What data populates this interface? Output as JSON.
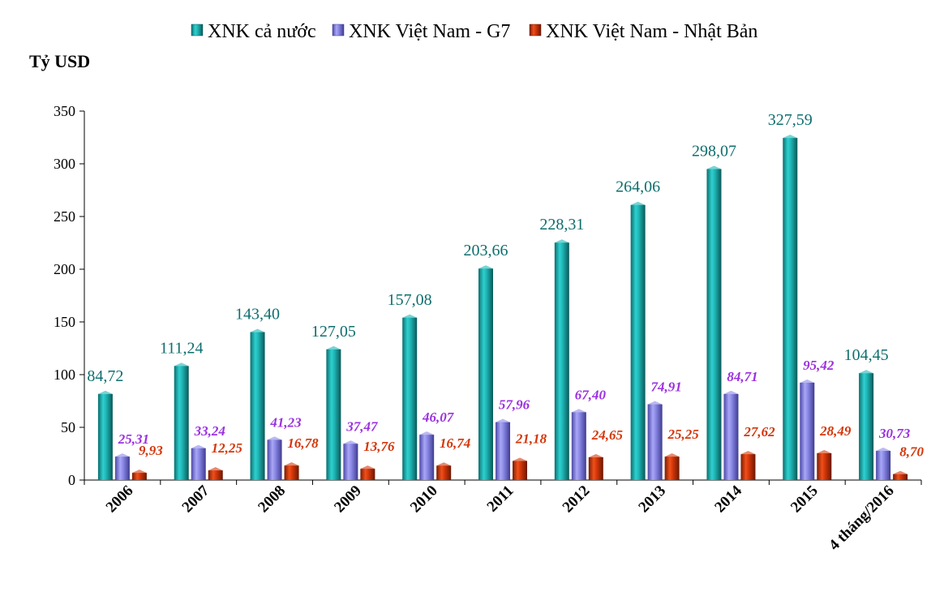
{
  "chart_data": {
    "type": "bar",
    "ylabel": "Tỷ USD",
    "xlabel": "",
    "title": "",
    "ylim": [
      0,
      350
    ],
    "yticks": [
      0,
      50,
      100,
      150,
      200,
      250,
      300,
      350
    ],
    "legend_position": "top",
    "grid": false,
    "categories": [
      "2006",
      "2007",
      "2008",
      "2009",
      "2010",
      "2011",
      "2012",
      "2013",
      "2014",
      "2015",
      "4 tháng/2016"
    ],
    "series": [
      {
        "name": "XNK cả nước",
        "color": "#1FB5B5",
        "values": [
          84.72,
          111.24,
          143.4,
          127.05,
          157.08,
          203.66,
          228.31,
          264.06,
          298.07,
          327.59,
          104.45
        ],
        "labels": [
          "84,72",
          "111,24",
          "143,40",
          "127,05",
          "157,08",
          "203,66",
          "228,31",
          "264,06",
          "298,07",
          "327,59",
          "104,45"
        ],
        "label_color": "#0E6E6E"
      },
      {
        "name": "XNK Việt Nam - G7",
        "color": "#8A88E6",
        "values": [
          25.31,
          33.24,
          41.23,
          37.47,
          46.07,
          57.96,
          67.4,
          74.91,
          84.71,
          95.42,
          30.73
        ],
        "labels": [
          "25,31",
          "33,24",
          "41,23",
          "37,47",
          "46,07",
          "57,96",
          "67,40",
          "74,91",
          "84,71",
          "95,42",
          "30,73"
        ],
        "label_color": "#9B30E0"
      },
      {
        "name": "XNK Việt Nam - Nhật Bản",
        "color": "#D4360A",
        "values": [
          9.93,
          12.25,
          16.78,
          13.76,
          16.74,
          21.18,
          24.65,
          25.25,
          27.62,
          28.49,
          8.7
        ],
        "labels": [
          "9,93",
          "12,25",
          "16,78",
          "13,76",
          "16,74",
          "21,18",
          "24,65",
          "25,25",
          "27,62",
          "28,49",
          "8,70"
        ],
        "label_color": "#D4360A"
      }
    ]
  }
}
